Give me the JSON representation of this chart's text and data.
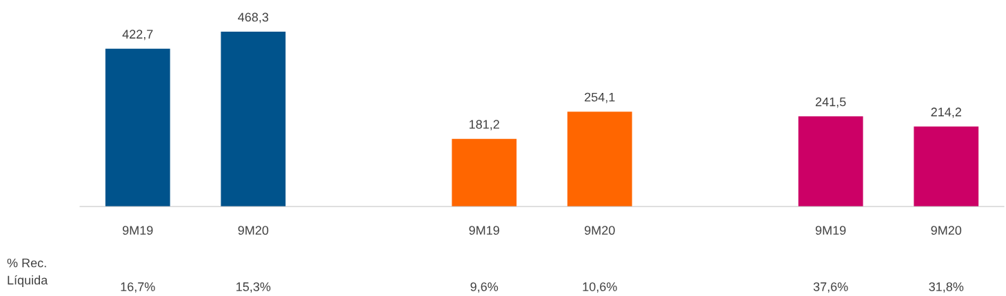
{
  "chart_data": {
    "type": "bar",
    "categories": [
      "9M19",
      "9M20",
      null,
      "9M19",
      "9M20",
      null,
      "9M19",
      "9M20"
    ],
    "values": [
      422.7,
      468.3,
      null,
      181.2,
      254.1,
      null,
      241.5,
      214.2
    ],
    "colors": [
      "#00538c",
      "#00538c",
      null,
      "#ff6600",
      "#ff6600",
      null,
      "#cc0066",
      "#cc0066"
    ],
    "value_labels": [
      "422,7",
      "468,3",
      null,
      "181,2",
      "254,1",
      null,
      "241,5",
      "214,2"
    ],
    "annotations": [
      "% Rec.\nLíquida",
      "16,7%",
      "15,3%",
      "9,6%",
      "10,6%",
      "37,6%",
      "31,8%"
    ],
    "grid": false,
    "legend": false
  }
}
